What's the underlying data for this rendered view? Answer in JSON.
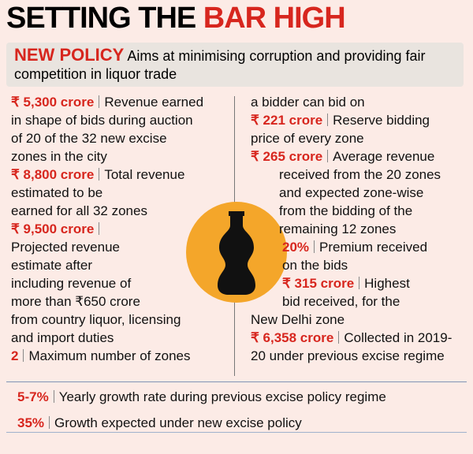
{
  "header": {
    "title_parts": [
      "SETTING THE",
      "BAR HIGH"
    ]
  },
  "banner": {
    "label": "NEW POLICY",
    "lines": [
      "Aims at minimising corruption and providing fair",
      "competition in liquor trade"
    ]
  },
  "left_items": [
    {
      "figure": "₹ 5,300 crore",
      "lines": [
        "Revenue earned",
        "in shape of bids during auction",
        "of 20 of the 32 new excise",
        "zones in the city"
      ]
    },
    {
      "figure": "₹ 8,800 crore",
      "lines": [
        "Total revenue",
        "estimated to be",
        "earned for all 32 zones"
      ]
    },
    {
      "figure": "₹ 9,500 crore",
      "lines": [
        "",
        "Projected revenue",
        "estimate after",
        "including revenue of",
        "more than ₹650 crore",
        "from country liquor, licensing",
        "and import duties"
      ]
    },
    {
      "figure": "2",
      "lines": [
        "Maximum number of zones"
      ]
    }
  ],
  "right_continuation": "a bidder can bid on",
  "right_items": [
    {
      "figure": "₹ 221 crore",
      "lines": [
        "Reserve bidding",
        "price of every zone"
      ]
    },
    {
      "figure": "₹ 265 crore",
      "lines": [
        "Average revenue",
        "received from the 20 zones",
        "and expected zone-wise",
        "from the bidding of the",
        "remaining 12 zones"
      ]
    },
    {
      "figure": "20%",
      "lines": [
        "Premium received",
        "on the bids"
      ]
    },
    {
      "figure": "₹ 315 crore",
      "lines": [
        "Highest",
        "bid received, for the",
        "New Delhi zone"
      ]
    },
    {
      "figure": "₹ 6,358 crore",
      "lines": [
        "Collected in 2019-",
        "20 under previous excise regime"
      ]
    }
  ],
  "bottom_items": [
    {
      "figure": "5-7%",
      "lines": [
        "Yearly growth rate during previous excise policy regime"
      ]
    },
    {
      "figure": "35%",
      "lines": [
        "Growth expected under new excise policy"
      ]
    }
  ]
}
